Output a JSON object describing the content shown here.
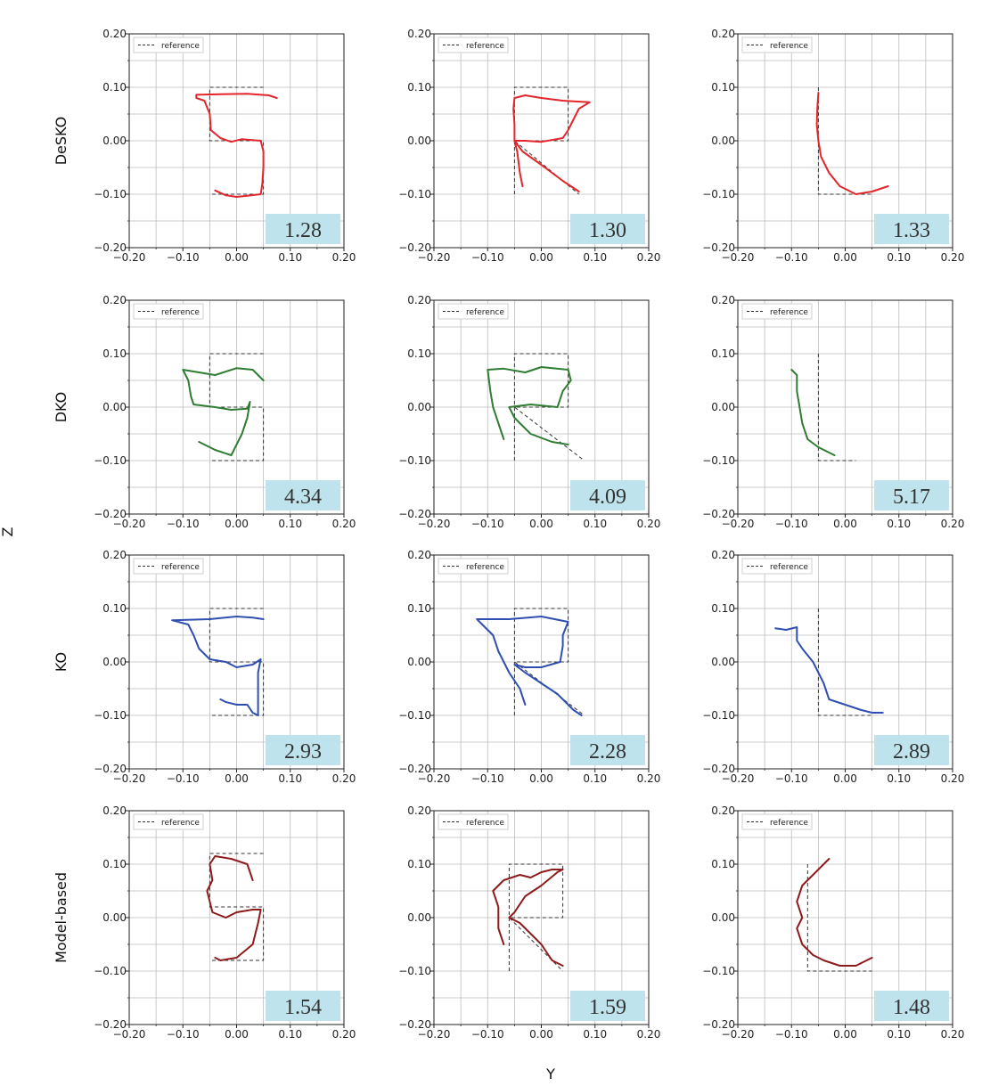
{
  "figure": {
    "x_axis_label": "Y",
    "y_axis_label": "Z",
    "row_labels": [
      "DeSKO",
      "DKO",
      "KO",
      "Model-based"
    ],
    "legend_label": "reference",
    "reference_color": "#333333",
    "box_fill": "#bfe3ec",
    "grid_color": "#bdbdbd",
    "series_colors": {
      "DeSKO": "#e3262b",
      "DKO": "#2e7d32",
      "KO": "#2f4fb0",
      "Model-based": "#8e1b1b"
    }
  },
  "chart_data": [
    {
      "type": "line",
      "row": "DeSKO",
      "letter": "S",
      "value": "1.28",
      "xlim": [
        -0.2,
        0.2
      ],
      "ylim": [
        -0.2,
        0.2
      ],
      "grid": true,
      "reference": [
        [
          0.05,
          0.1
        ],
        [
          -0.05,
          0.1
        ],
        [
          -0.05,
          0.0
        ],
        [
          0.05,
          0.0
        ],
        [
          0.05,
          -0.1
        ],
        [
          -0.05,
          -0.1
        ]
      ],
      "series": {
        "name": "DeSKO",
        "points": [
          [
            0.075,
            0.08
          ],
          [
            0.06,
            0.085
          ],
          [
            0.02,
            0.088
          ],
          [
            -0.03,
            0.087
          ],
          [
            -0.075,
            0.086
          ],
          [
            -0.075,
            0.08
          ],
          [
            -0.06,
            0.075
          ],
          [
            -0.05,
            0.05
          ],
          [
            -0.048,
            0.02
          ],
          [
            -0.03,
            0.005
          ],
          [
            -0.01,
            -0.002
          ],
          [
            0.01,
            0.003
          ],
          [
            0.045,
            0.0
          ],
          [
            0.05,
            -0.02
          ],
          [
            0.05,
            -0.05
          ],
          [
            0.048,
            -0.08
          ],
          [
            0.045,
            -0.1
          ],
          [
            0.02,
            -0.103
          ],
          [
            0.0,
            -0.105
          ],
          [
            -0.02,
            -0.102
          ],
          [
            -0.04,
            -0.093
          ]
        ]
      }
    },
    {
      "type": "line",
      "row": "DeSKO",
      "letter": "R",
      "value": "1.30",
      "xlim": [
        -0.2,
        0.2
      ],
      "ylim": [
        -0.2,
        0.2
      ],
      "grid": true,
      "reference": [
        [
          -0.05,
          -0.1
        ],
        [
          -0.05,
          0.1
        ],
        [
          0.05,
          0.1
        ],
        [
          0.05,
          0.0
        ],
        [
          -0.05,
          0.0
        ],
        [
          0.07,
          -0.1
        ]
      ],
      "series": {
        "name": "DeSKO",
        "points": [
          [
            -0.035,
            -0.085
          ],
          [
            -0.04,
            -0.06
          ],
          [
            -0.045,
            -0.02
          ],
          [
            -0.05,
            0.0
          ],
          [
            -0.05,
            0.03
          ],
          [
            -0.052,
            0.06
          ],
          [
            -0.05,
            0.08
          ],
          [
            -0.03,
            0.085
          ],
          [
            0.0,
            0.08
          ],
          [
            0.04,
            0.075
          ],
          [
            0.09,
            0.072
          ],
          [
            0.07,
            0.06
          ],
          [
            0.06,
            0.04
          ],
          [
            0.05,
            0.02
          ],
          [
            0.04,
            0.005
          ],
          [
            0.0,
            -0.002
          ],
          [
            -0.03,
            0.0
          ],
          [
            -0.05,
            0.0
          ],
          [
            -0.035,
            -0.02
          ],
          [
            0.0,
            -0.045
          ],
          [
            0.04,
            -0.075
          ],
          [
            0.07,
            -0.095
          ]
        ]
      }
    },
    {
      "type": "line",
      "row": "DeSKO",
      "letter": "L",
      "value": "1.33",
      "xlim": [
        -0.2,
        0.2
      ],
      "ylim": [
        -0.2,
        0.2
      ],
      "grid": true,
      "reference": [
        [
          -0.05,
          0.1
        ],
        [
          -0.05,
          -0.1
        ],
        [
          0.05,
          -0.1
        ]
      ],
      "series": {
        "name": "DeSKO",
        "points": [
          [
            -0.05,
            0.09
          ],
          [
            -0.052,
            0.06
          ],
          [
            -0.053,
            0.03
          ],
          [
            -0.05,
            0.0
          ],
          [
            -0.045,
            -0.03
          ],
          [
            -0.03,
            -0.06
          ],
          [
            -0.01,
            -0.085
          ],
          [
            0.02,
            -0.1
          ],
          [
            0.05,
            -0.095
          ],
          [
            0.08,
            -0.085
          ]
        ]
      }
    },
    {
      "type": "line",
      "row": "DKO",
      "letter": "S",
      "value": "4.34",
      "xlim": [
        -0.2,
        0.2
      ],
      "ylim": [
        -0.2,
        0.2
      ],
      "grid": true,
      "reference": [
        [
          0.05,
          0.1
        ],
        [
          -0.05,
          0.1
        ],
        [
          -0.05,
          0.0
        ],
        [
          0.05,
          0.0
        ],
        [
          0.05,
          -0.1
        ],
        [
          -0.05,
          -0.1
        ]
      ],
      "series": {
        "name": "DKO",
        "points": [
          [
            0.05,
            0.05
          ],
          [
            0.03,
            0.07
          ],
          [
            0.0,
            0.073
          ],
          [
            -0.04,
            0.06
          ],
          [
            -0.1,
            0.07
          ],
          [
            -0.09,
            0.05
          ],
          [
            -0.085,
            0.02
          ],
          [
            -0.08,
            0.005
          ],
          [
            -0.04,
            0.0
          ],
          [
            -0.01,
            -0.005
          ],
          [
            0.02,
            -0.003
          ],
          [
            0.025,
            0.01
          ],
          [
            0.02,
            -0.02
          ],
          [
            0.01,
            -0.05
          ],
          [
            0.0,
            -0.07
          ],
          [
            -0.01,
            -0.09
          ],
          [
            -0.04,
            -0.08
          ],
          [
            -0.07,
            -0.065
          ]
        ]
      }
    },
    {
      "type": "line",
      "row": "DKO",
      "letter": "R",
      "value": "4.09",
      "xlim": [
        -0.2,
        0.2
      ],
      "ylim": [
        -0.2,
        0.2
      ],
      "grid": true,
      "reference": [
        [
          -0.05,
          -0.1
        ],
        [
          -0.05,
          0.1
        ],
        [
          0.05,
          0.1
        ],
        [
          0.05,
          0.0
        ],
        [
          -0.05,
          0.0
        ],
        [
          0.08,
          -0.1
        ]
      ],
      "series": {
        "name": "DKO",
        "points": [
          [
            -0.07,
            -0.06
          ],
          [
            -0.08,
            -0.03
          ],
          [
            -0.09,
            0.0
          ],
          [
            -0.095,
            0.03
          ],
          [
            -0.1,
            0.07
          ],
          [
            -0.07,
            0.072
          ],
          [
            -0.03,
            0.065
          ],
          [
            0.0,
            0.075
          ],
          [
            0.05,
            0.07
          ],
          [
            0.055,
            0.05
          ],
          [
            0.04,
            0.03
          ],
          [
            0.03,
            0.0
          ],
          [
            -0.02,
            0.005
          ],
          [
            -0.06,
            0.0
          ],
          [
            -0.05,
            -0.02
          ],
          [
            -0.02,
            -0.05
          ],
          [
            0.02,
            -0.065
          ],
          [
            0.05,
            -0.07
          ]
        ]
      }
    },
    {
      "type": "line",
      "row": "DKO",
      "letter": "L",
      "value": "5.17",
      "xlim": [
        -0.2,
        0.2
      ],
      "ylim": [
        -0.2,
        0.2
      ],
      "grid": true,
      "reference": [
        [
          -0.05,
          0.1
        ],
        [
          -0.05,
          -0.1
        ],
        [
          0.02,
          -0.1
        ]
      ],
      "series": {
        "name": "DKO",
        "points": [
          [
            -0.1,
            0.07
          ],
          [
            -0.09,
            0.06
          ],
          [
            -0.09,
            0.03
          ],
          [
            -0.085,
            0.0
          ],
          [
            -0.08,
            -0.03
          ],
          [
            -0.07,
            -0.06
          ],
          [
            -0.05,
            -0.075
          ],
          [
            -0.02,
            -0.09
          ]
        ]
      }
    },
    {
      "type": "line",
      "row": "KO",
      "letter": "S",
      "value": "2.93",
      "xlim": [
        -0.2,
        0.2
      ],
      "ylim": [
        -0.2,
        0.2
      ],
      "grid": true,
      "reference": [
        [
          0.05,
          0.1
        ],
        [
          -0.05,
          0.1
        ],
        [
          -0.05,
          0.0
        ],
        [
          0.05,
          0.0
        ],
        [
          0.05,
          -0.1
        ],
        [
          -0.05,
          -0.1
        ]
      ],
      "series": {
        "name": "KO",
        "points": [
          [
            0.05,
            0.08
          ],
          [
            0.03,
            0.083
          ],
          [
            0.0,
            0.085
          ],
          [
            -0.05,
            0.08
          ],
          [
            -0.12,
            0.078
          ],
          [
            -0.09,
            0.07
          ],
          [
            -0.08,
            0.05
          ],
          [
            -0.07,
            0.025
          ],
          [
            -0.05,
            0.005
          ],
          [
            -0.02,
            0.0
          ],
          [
            0.0,
            -0.01
          ],
          [
            0.03,
            -0.005
          ],
          [
            0.045,
            0.005
          ],
          [
            0.04,
            -0.02
          ],
          [
            0.04,
            -0.05
          ],
          [
            0.04,
            -0.08
          ],
          [
            0.04,
            -0.1
          ],
          [
            0.03,
            -0.095
          ],
          [
            0.02,
            -0.08
          ],
          [
            0.0,
            -0.08
          ],
          [
            -0.02,
            -0.075
          ],
          [
            -0.03,
            -0.07
          ]
        ]
      }
    },
    {
      "type": "line",
      "row": "KO",
      "letter": "R",
      "value": "2.28",
      "xlim": [
        -0.2,
        0.2
      ],
      "ylim": [
        -0.2,
        0.2
      ],
      "grid": true,
      "reference": [
        [
          -0.05,
          -0.1
        ],
        [
          -0.05,
          0.1
        ],
        [
          0.05,
          0.1
        ],
        [
          0.05,
          0.0
        ],
        [
          -0.05,
          0.0
        ],
        [
          0.08,
          -0.1
        ]
      ],
      "series": {
        "name": "KO",
        "points": [
          [
            -0.03,
            -0.08
          ],
          [
            -0.04,
            -0.05
          ],
          [
            -0.06,
            -0.02
          ],
          [
            -0.08,
            0.02
          ],
          [
            -0.09,
            0.05
          ],
          [
            -0.12,
            0.08
          ],
          [
            -0.06,
            0.08
          ],
          [
            0.0,
            0.085
          ],
          [
            0.05,
            0.075
          ],
          [
            0.04,
            0.05
          ],
          [
            0.04,
            0.03
          ],
          [
            0.035,
            0.0
          ],
          [
            0.0,
            -0.01
          ],
          [
            -0.03,
            -0.01
          ],
          [
            -0.05,
            -0.005
          ],
          [
            -0.03,
            -0.02
          ],
          [
            0.0,
            -0.04
          ],
          [
            0.03,
            -0.06
          ],
          [
            0.06,
            -0.09
          ],
          [
            0.075,
            -0.1
          ]
        ]
      }
    },
    {
      "type": "line",
      "row": "KO",
      "letter": "L",
      "value": "2.89",
      "xlim": [
        -0.2,
        0.2
      ],
      "ylim": [
        -0.2,
        0.2
      ],
      "grid": true,
      "reference": [
        [
          -0.05,
          0.1
        ],
        [
          -0.05,
          -0.1
        ],
        [
          0.05,
          -0.1
        ]
      ],
      "series": {
        "name": "KO",
        "points": [
          [
            -0.13,
            0.063
          ],
          [
            -0.11,
            0.06
          ],
          [
            -0.09,
            0.065
          ],
          [
            -0.09,
            0.04
          ],
          [
            -0.08,
            0.025
          ],
          [
            -0.06,
            0.0
          ],
          [
            -0.04,
            -0.04
          ],
          [
            -0.03,
            -0.07
          ],
          [
            0.0,
            -0.08
          ],
          [
            0.03,
            -0.09
          ],
          [
            0.05,
            -0.095
          ],
          [
            0.07,
            -0.095
          ]
        ]
      }
    },
    {
      "type": "line",
      "row": "Model-based",
      "letter": "S",
      "value": "1.54",
      "xlim": [
        -0.2,
        0.2
      ],
      "ylim": [
        -0.2,
        0.2
      ],
      "grid": true,
      "reference": [
        [
          0.05,
          0.12
        ],
        [
          -0.05,
          0.12
        ],
        [
          -0.05,
          0.02
        ],
        [
          0.05,
          0.02
        ],
        [
          0.05,
          -0.08
        ],
        [
          -0.05,
          -0.08
        ]
      ],
      "series": {
        "name": "Model-based",
        "points": [
          [
            0.03,
            0.07
          ],
          [
            0.02,
            0.1
          ],
          [
            -0.01,
            0.11
          ],
          [
            -0.04,
            0.115
          ],
          [
            -0.05,
            0.1
          ],
          [
            -0.045,
            0.07
          ],
          [
            -0.055,
            0.05
          ],
          [
            -0.05,
            0.03
          ],
          [
            -0.045,
            0.01
          ],
          [
            -0.02,
            0.0
          ],
          [
            0.0,
            0.01
          ],
          [
            0.03,
            0.015
          ],
          [
            0.045,
            0.015
          ],
          [
            0.04,
            -0.01
          ],
          [
            0.03,
            -0.05
          ],
          [
            0.0,
            -0.075
          ],
          [
            -0.03,
            -0.08
          ],
          [
            -0.04,
            -0.075
          ]
        ]
      }
    },
    {
      "type": "line",
      "row": "Model-based",
      "letter": "R",
      "value": "1.59",
      "xlim": [
        -0.2,
        0.2
      ],
      "ylim": [
        -0.2,
        0.2
      ],
      "grid": true,
      "reference": [
        [
          -0.06,
          -0.1
        ],
        [
          -0.06,
          0.1
        ],
        [
          0.04,
          0.1
        ],
        [
          0.04,
          0.0
        ],
        [
          -0.06,
          0.0
        ],
        [
          0.04,
          -0.1
        ]
      ],
      "series": {
        "name": "Model-based",
        "points": [
          [
            -0.07,
            -0.05
          ],
          [
            -0.08,
            -0.02
          ],
          [
            -0.08,
            0.02
          ],
          [
            -0.09,
            0.05
          ],
          [
            -0.07,
            0.07
          ],
          [
            -0.04,
            0.08
          ],
          [
            -0.02,
            0.075
          ],
          [
            0.0,
            0.085
          ],
          [
            0.02,
            0.09
          ],
          [
            0.04,
            0.09
          ],
          [
            0.03,
            0.085
          ],
          [
            0.0,
            0.06
          ],
          [
            -0.03,
            0.04
          ],
          [
            -0.05,
            0.01
          ],
          [
            -0.06,
            0.0
          ],
          [
            -0.04,
            -0.01
          ],
          [
            0.0,
            -0.05
          ],
          [
            0.02,
            -0.08
          ],
          [
            0.04,
            -0.09
          ],
          [
            0.03,
            -0.085
          ]
        ]
      }
    },
    {
      "type": "line",
      "row": "Model-based",
      "letter": "L",
      "value": "1.48",
      "xlim": [
        -0.2,
        0.2
      ],
      "ylim": [
        -0.2,
        0.2
      ],
      "grid": true,
      "reference": [
        [
          -0.07,
          0.1
        ],
        [
          -0.07,
          -0.1
        ],
        [
          0.05,
          -0.1
        ]
      ],
      "series": {
        "name": "Model-based",
        "points": [
          [
            -0.03,
            0.11
          ],
          [
            -0.04,
            0.1
          ],
          [
            -0.06,
            0.08
          ],
          [
            -0.08,
            0.06
          ],
          [
            -0.09,
            0.03
          ],
          [
            -0.08,
            0.0
          ],
          [
            -0.09,
            -0.02
          ],
          [
            -0.08,
            -0.05
          ],
          [
            -0.06,
            -0.07
          ],
          [
            -0.04,
            -0.08
          ],
          [
            -0.01,
            -0.09
          ],
          [
            0.02,
            -0.09
          ],
          [
            0.05,
            -0.075
          ]
        ]
      }
    }
  ]
}
